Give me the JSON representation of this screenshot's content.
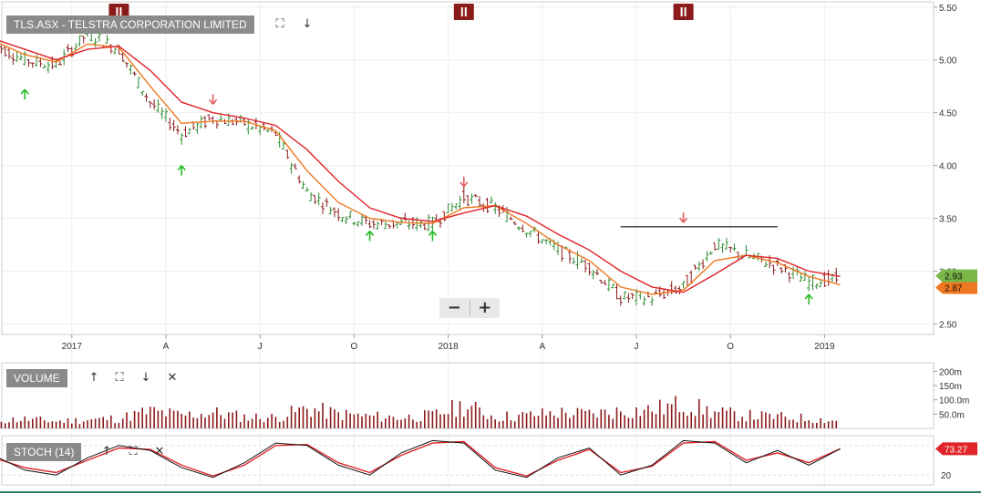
{
  "header": {
    "title": "TLS.ASX - TELSTRA CORPORATION LIMITED"
  },
  "volume_panel": {
    "title": "VOLUME"
  },
  "stoch_panel": {
    "title": "STOCH (14)",
    "value": "73.27"
  },
  "toolbar_icons": [
    "fullscreen-icon",
    "arrow-down-icon",
    "arrow-up-icon",
    "close-icon"
  ],
  "zoom": {
    "minus": "−",
    "plus": "+"
  },
  "colors": {
    "price_up": "#2e8b2e",
    "price_down": "#8b1a1a",
    "ma_fast": "#f07820",
    "ma_slow": "#e0242a",
    "volume": "#8b1a1a",
    "stoch_k": "#111111",
    "stoch_d": "#e0242a",
    "buy_arrow": "#22bb22",
    "sell_arrow": "#e06060",
    "dividend_marker": "#8b1a1a",
    "last_price_badge": "#7ab648",
    "stoch_badge": "#e0242a"
  },
  "chart_data": [
    {
      "type": "line",
      "title": "TLS.ASX - TELSTRA CORPORATION LIMITED",
      "x": [
        "2016-10",
        "2016-11",
        "2016-12",
        "2017-01",
        "2017-02",
        "2017-03",
        "2017-04",
        "2017-05",
        "2017-06",
        "2017-07",
        "2017-08",
        "2017-09",
        "2017-10",
        "2017-11",
        "2017-12",
        "2018-01",
        "2018-02",
        "2018-03",
        "2018-04",
        "2018-05",
        "2018-06",
        "2018-07",
        "2018-08",
        "2018-09",
        "2018-10",
        "2018-11",
        "2018-12",
        "2019-01"
      ],
      "series": [
        {
          "values": [
            5.15,
            5.0,
            4.95,
            5.25,
            5.1,
            4.6,
            4.3,
            4.45,
            4.4,
            4.3,
            3.75,
            3.55,
            3.45,
            3.45,
            3.45,
            3.7,
            3.6,
            3.4,
            3.2,
            3.05,
            2.75,
            2.75,
            2.85,
            3.25,
            3.15,
            3.05,
            2.9,
            2.93
          ]
        },
        {
          "values": [
            5.18,
            5.05,
            4.98,
            5.15,
            5.12,
            4.75,
            4.4,
            4.42,
            4.42,
            4.33,
            3.95,
            3.65,
            3.5,
            3.46,
            3.45,
            3.6,
            3.62,
            3.45,
            3.25,
            3.1,
            2.85,
            2.78,
            2.82,
            3.1,
            3.15,
            3.08,
            2.95,
            2.87
          ]
        },
        {
          "values": [
            5.2,
            5.1,
            5.0,
            5.1,
            5.13,
            4.9,
            4.6,
            4.5,
            4.45,
            4.38,
            4.15,
            3.85,
            3.6,
            3.5,
            3.47,
            3.55,
            3.62,
            3.52,
            3.35,
            3.2,
            3.0,
            2.85,
            2.8,
            2.97,
            3.15,
            3.12,
            3.0,
            2.95
          ]
        }
      ],
      "price_labels": [
        "2.93",
        "2.87"
      ],
      "yticks": [
        "5.50",
        "5.00",
        "4.50",
        "4.00",
        "3.50",
        "3.00",
        "2.50"
      ],
      "xticks": [
        "O",
        "2017",
        "A",
        "J",
        "O",
        "2018",
        "A",
        "J",
        "O",
        "2019"
      ],
      "ylim": [
        2.4,
        5.55
      ],
      "buy_signals": [
        {
          "x": "2016-11",
          "y": 4.72
        },
        {
          "x": "2017-04",
          "y": 4.0
        },
        {
          "x": "2017-10",
          "y": 3.38
        },
        {
          "x": "2017-12",
          "y": 3.38
        },
        {
          "x": "2018-12",
          "y": 2.78
        }
      ],
      "sell_signals": [
        {
          "x": "2017-05",
          "y": 4.58
        },
        {
          "x": "2018-01",
          "y": 3.8
        },
        {
          "x": "2018-08",
          "y": 3.46
        }
      ],
      "resistance": {
        "from": "2018-06",
        "to": "2018-11",
        "y": 3.42
      },
      "dividend_markers": [
        "2017-02",
        "2018-01",
        "2018-08"
      ],
      "grid": true
    },
    {
      "type": "bar",
      "title": "VOLUME",
      "x": [
        "2016-10",
        "2016-11",
        "2016-12",
        "2017-01",
        "2017-02",
        "2017-03",
        "2017-04",
        "2017-05",
        "2017-06",
        "2017-07",
        "2017-08",
        "2017-09",
        "2017-10",
        "2017-11",
        "2017-12",
        "2018-01",
        "2018-02",
        "2018-03",
        "2018-04",
        "2018-05",
        "2018-06",
        "2018-07",
        "2018-08",
        "2018-09",
        "2018-10",
        "2018-11",
        "2018-12",
        "2019-01"
      ],
      "values": [
        28,
        32,
        25,
        30,
        35,
        60,
        45,
        55,
        40,
        38,
        70,
        50,
        42,
        38,
        45,
        80,
        40,
        45,
        55,
        50,
        60,
        65,
        85,
        55,
        45,
        40,
        35,
        25
      ],
      "yticks": [
        "200m",
        "150m",
        "100.0m",
        "50.0m"
      ],
      "ylim": [
        0,
        230
      ]
    },
    {
      "type": "line",
      "title": "STOCH (14)",
      "yticks": [
        "20"
      ],
      "ylim": [
        0,
        100
      ],
      "series": [
        {
          "values": [
            60,
            30,
            20,
            55,
            80,
            70,
            35,
            15,
            45,
            85,
            80,
            40,
            20,
            65,
            90,
            85,
            30,
            15,
            55,
            75,
            20,
            40,
            90,
            85,
            45,
            70,
            40,
            73.27
          ]
        },
        {
          "values": [
            55,
            35,
            25,
            50,
            75,
            72,
            40,
            18,
            40,
            80,
            82,
            45,
            25,
            60,
            85,
            88,
            35,
            18,
            50,
            72,
            25,
            38,
            85,
            88,
            50,
            65,
            45,
            73.27
          ]
        }
      ]
    }
  ]
}
